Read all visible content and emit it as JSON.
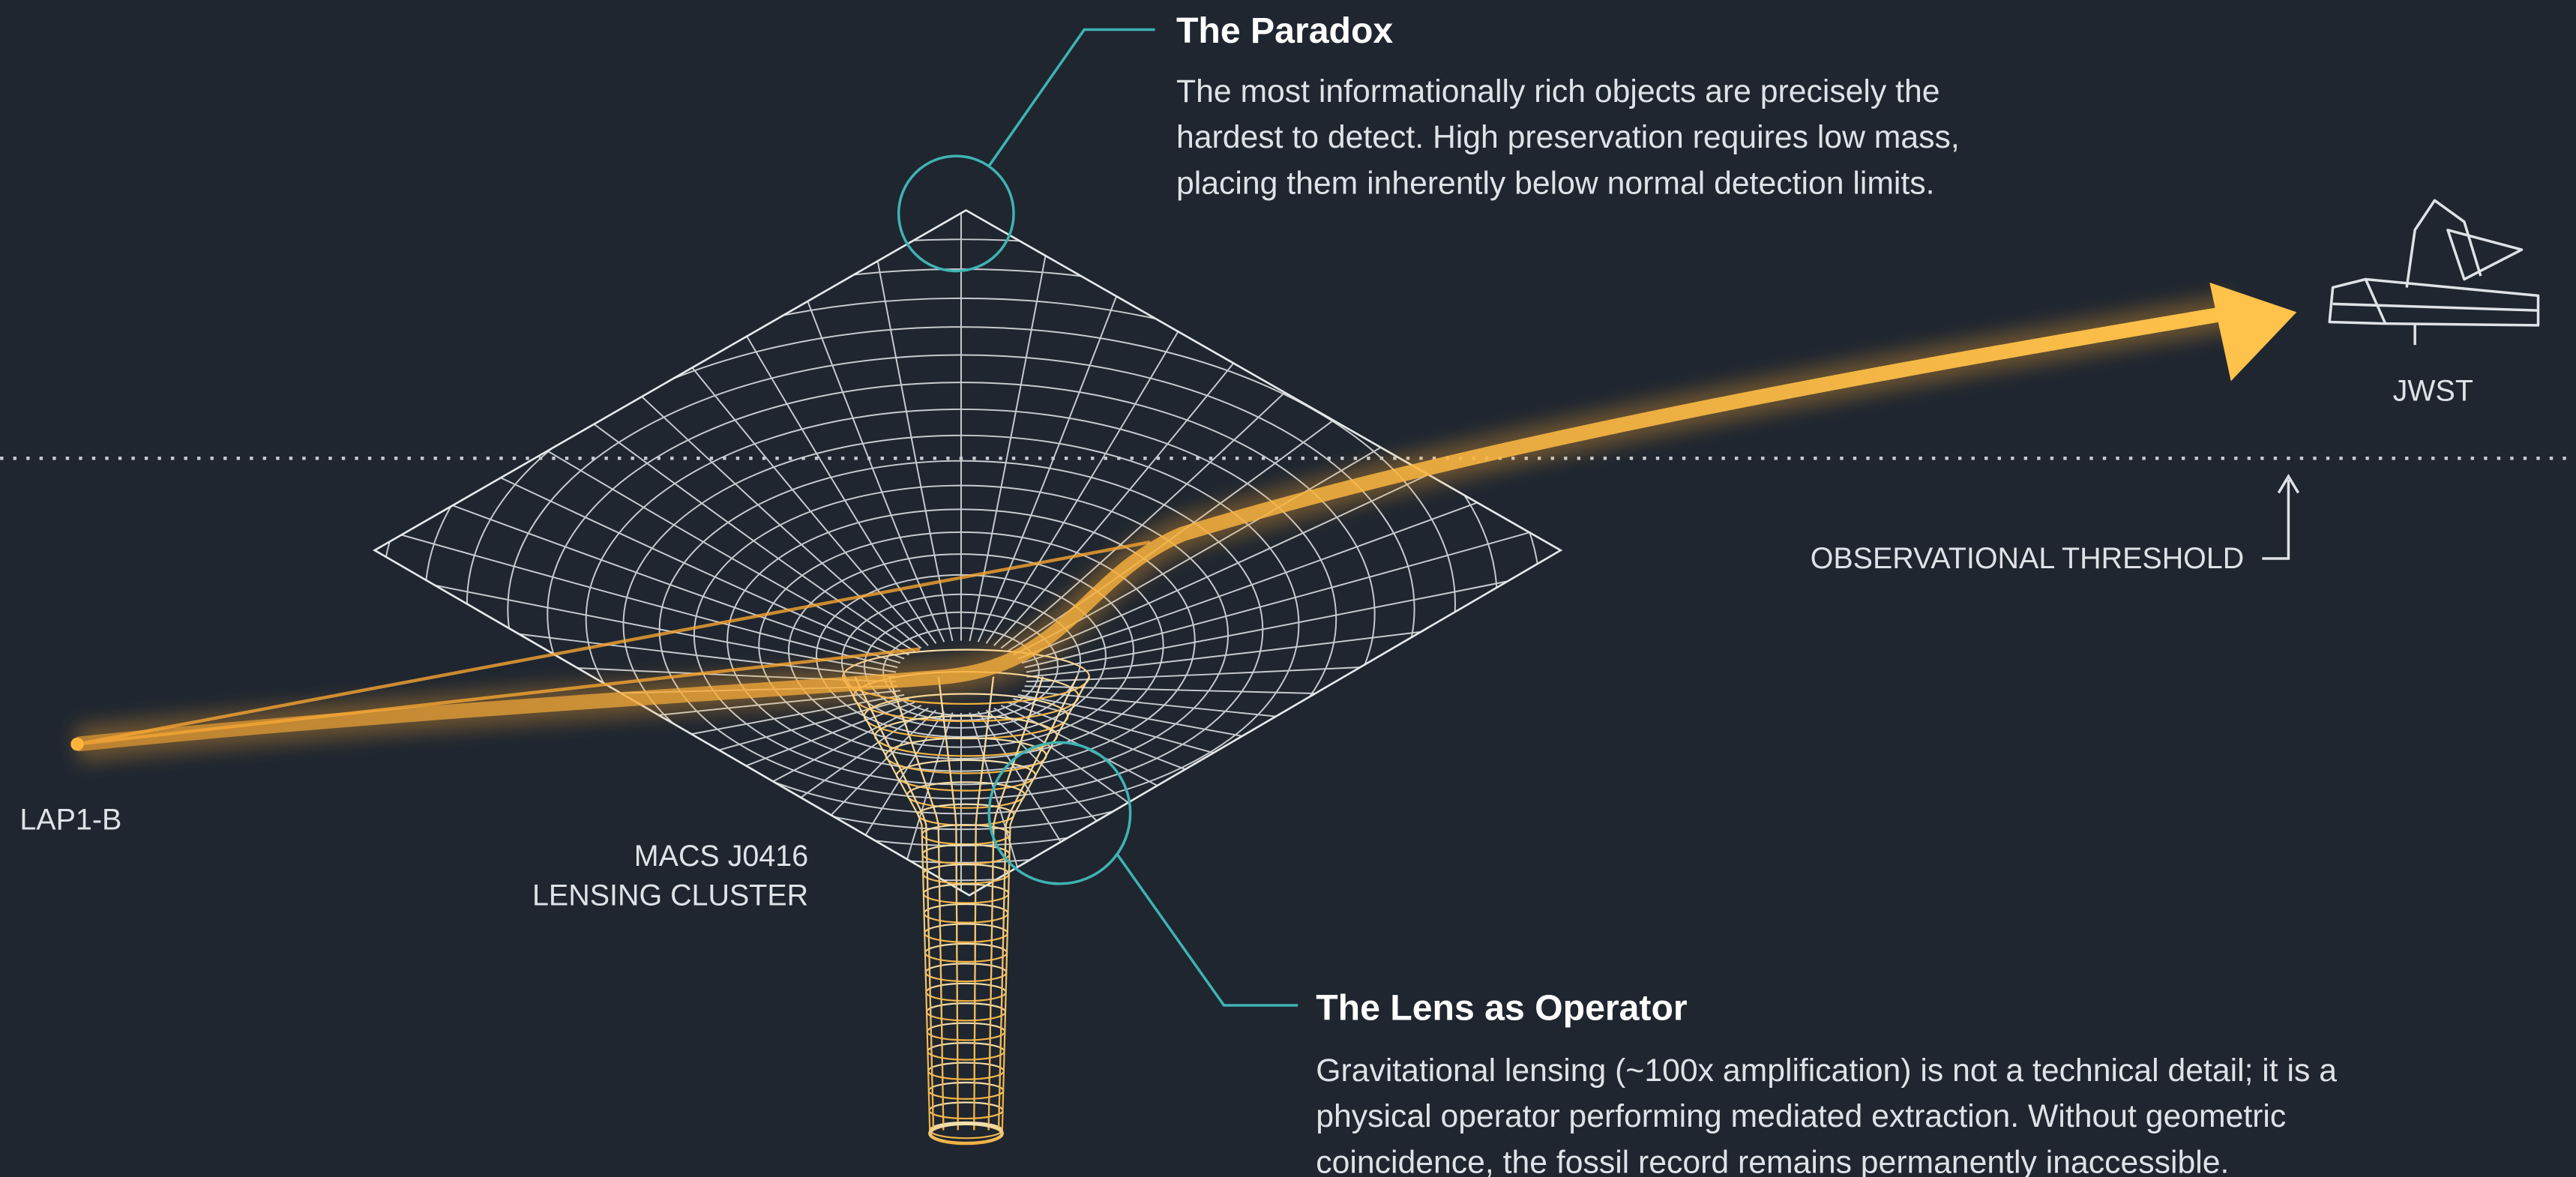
{
  "paradox": {
    "title": "The Paradox",
    "lines": [
      "The most informationally rich objects are precisely the",
      "hardest to detect. High preservation requires low mass,",
      "placing them inherently below normal detection limits."
    ]
  },
  "lens": {
    "title": "The Lens as Operator",
    "lines": [
      "Gravitational lensing (~100x amplification) is not a technical detail; it is a",
      "physical operator performing mediated extraction. Without geometric",
      "coincidence, the fossil record remains permanently inaccessible."
    ]
  },
  "labels": {
    "source": "LAP1-B",
    "cluster": [
      "MACS J0416",
      "LENSING CLUSTER"
    ],
    "observer": "JWST",
    "threshold": "OBSERVATIONAL THRESHOLD"
  }
}
